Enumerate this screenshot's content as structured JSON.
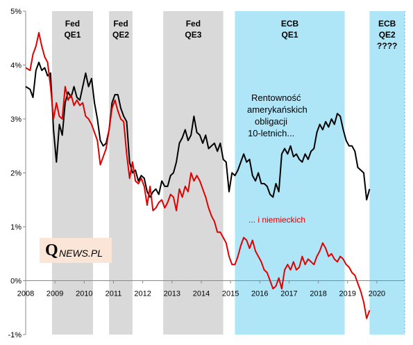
{
  "chart_data": {
    "type": "line",
    "xlim": [
      2008,
      2020.95
    ],
    "ylim": [
      -1,
      5
    ],
    "x_ticks": [
      "2008",
      "2009",
      "2010",
      "2011",
      "2012",
      "2013",
      "2014",
      "2015",
      "2016",
      "2017",
      "2018",
      "2019",
      "2020"
    ],
    "y_ticks": [
      "5%",
      "4%",
      "3%",
      "2%",
      "1%",
      "0%",
      "-1%"
    ],
    "grid": false,
    "bands": [
      {
        "label_line1": "Fed",
        "label_line2": "QE1",
        "label_line3": "",
        "start": 2008.9,
        "end": 2010.3,
        "color": "#d9d9d9"
      },
      {
        "label_line1": "Fed",
        "label_line2": "QE2",
        "label_line3": "",
        "start": 2010.85,
        "end": 2011.65,
        "color": "#d9d9d9"
      },
      {
        "label_line1": "Fed",
        "label_line2": "QE3",
        "label_line3": "",
        "start": 2012.7,
        "end": 2014.75,
        "color": "#d9d9d9"
      },
      {
        "label_line1": "ECB",
        "label_line2": "QE1",
        "label_line3": "",
        "start": 2015.15,
        "end": 2018.9,
        "color": "#aee5f7"
      },
      {
        "label_line1": "ECB",
        "label_line2": "QE2",
        "label_line3": "????",
        "start": 2019.75,
        "end": 2020.95,
        "color": "#aee5f7"
      }
    ],
    "series": [
      {
        "color": "#000000",
        "x": [
          2008.0,
          2008.15,
          2008.25,
          2008.35,
          2008.45,
          2008.55,
          2008.65,
          2008.75,
          2008.85,
          2008.95,
          2009.05,
          2009.15,
          2009.25,
          2009.35,
          2009.45,
          2009.55,
          2009.65,
          2009.75,
          2009.85,
          2009.95,
          2010.05,
          2010.15,
          2010.25,
          2010.35,
          2010.45,
          2010.55,
          2010.65,
          2010.75,
          2010.85,
          2010.95,
          2011.05,
          2011.15,
          2011.25,
          2011.35,
          2011.45,
          2011.55,
          2011.65,
          2011.75,
          2011.85,
          2011.95,
          2012.05,
          2012.15,
          2012.25,
          2012.35,
          2012.45,
          2012.55,
          2012.65,
          2012.75,
          2012.85,
          2012.95,
          2013.05,
          2013.15,
          2013.25,
          2013.35,
          2013.45,
          2013.55,
          2013.65,
          2013.75,
          2013.85,
          2013.95,
          2014.05,
          2014.15,
          2014.25,
          2014.35,
          2014.45,
          2014.55,
          2014.65,
          2014.75,
          2014.85,
          2014.95,
          2015.05,
          2015.15,
          2015.25,
          2015.35,
          2015.45,
          2015.55,
          2015.65,
          2015.75,
          2015.85,
          2015.95,
          2016.05,
          2016.15,
          2016.25,
          2016.35,
          2016.45,
          2016.55,
          2016.65,
          2016.75,
          2016.85,
          2016.95,
          2017.05,
          2017.15,
          2017.25,
          2017.35,
          2017.45,
          2017.55,
          2017.65,
          2017.75,
          2017.85,
          2017.95,
          2018.05,
          2018.15,
          2018.25,
          2018.35,
          2018.45,
          2018.55,
          2018.65,
          2018.75,
          2018.85,
          2018.95,
          2019.05,
          2019.15,
          2019.25,
          2019.35,
          2019.45,
          2019.55,
          2019.65,
          2019.75
        ],
        "values": [
          3.6,
          3.55,
          3.4,
          3.9,
          4.05,
          3.9,
          3.95,
          3.8,
          3.85,
          2.8,
          2.2,
          2.9,
          2.7,
          3.3,
          3.5,
          3.4,
          3.6,
          3.4,
          3.35,
          3.6,
          3.85,
          3.6,
          3.75,
          3.3,
          3.0,
          2.6,
          2.5,
          2.55,
          2.8,
          3.3,
          3.45,
          3.45,
          3.2,
          3.05,
          2.95,
          2.2,
          2.0,
          2.05,
          1.85,
          1.95,
          1.9,
          1.65,
          1.55,
          1.65,
          1.7,
          1.6,
          1.85,
          1.75,
          1.75,
          1.95,
          2.0,
          2.2,
          2.55,
          2.65,
          2.8,
          2.6,
          2.7,
          3.05,
          2.75,
          2.7,
          2.55,
          2.7,
          2.45,
          2.5,
          2.55,
          2.4,
          2.55,
          2.25,
          2.2,
          1.65,
          2.0,
          1.95,
          2.05,
          2.2,
          2.35,
          2.2,
          2.25,
          1.95,
          1.85,
          2.0,
          1.8,
          1.8,
          1.75,
          1.6,
          1.55,
          1.8,
          1.65,
          2.35,
          2.45,
          2.35,
          2.5,
          2.3,
          2.35,
          2.25,
          2.2,
          2.35,
          2.25,
          2.4,
          2.45,
          2.75,
          2.9,
          2.8,
          2.95,
          2.85,
          3.0,
          2.9,
          3.1,
          3.05,
          2.8,
          2.6,
          2.5,
          2.5,
          2.4,
          2.1,
          2.05,
          2.0,
          1.5,
          1.7
        ]
      },
      {
        "color": "#e00000",
        "x": [
          2008.0,
          2008.15,
          2008.25,
          2008.35,
          2008.45,
          2008.55,
          2008.65,
          2008.75,
          2008.85,
          2008.95,
          2009.05,
          2009.15,
          2009.25,
          2009.35,
          2009.45,
          2009.55,
          2009.65,
          2009.75,
          2009.85,
          2009.95,
          2010.05,
          2010.15,
          2010.25,
          2010.35,
          2010.45,
          2010.55,
          2010.65,
          2010.75,
          2010.85,
          2010.95,
          2011.05,
          2011.15,
          2011.25,
          2011.35,
          2011.45,
          2011.55,
          2011.65,
          2011.75,
          2011.85,
          2011.95,
          2012.05,
          2012.15,
          2012.25,
          2012.35,
          2012.45,
          2012.55,
          2012.65,
          2012.75,
          2012.85,
          2012.95,
          2013.05,
          2013.15,
          2013.25,
          2013.35,
          2013.45,
          2013.55,
          2013.65,
          2013.75,
          2013.85,
          2013.95,
          2014.05,
          2014.15,
          2014.25,
          2014.35,
          2014.45,
          2014.55,
          2014.65,
          2014.75,
          2014.85,
          2014.95,
          2015.05,
          2015.15,
          2015.25,
          2015.35,
          2015.45,
          2015.55,
          2015.65,
          2015.75,
          2015.85,
          2015.95,
          2016.05,
          2016.15,
          2016.25,
          2016.35,
          2016.45,
          2016.55,
          2016.65,
          2016.75,
          2016.85,
          2016.95,
          2017.05,
          2017.15,
          2017.25,
          2017.35,
          2017.45,
          2017.55,
          2017.65,
          2017.75,
          2017.85,
          2017.95,
          2018.05,
          2018.15,
          2018.25,
          2018.35,
          2018.45,
          2018.55,
          2018.65,
          2018.75,
          2018.85,
          2018.95,
          2019.05,
          2019.15,
          2019.25,
          2019.35,
          2019.45,
          2019.55,
          2019.65,
          2019.75
        ],
        "values": [
          3.95,
          3.9,
          4.2,
          4.35,
          4.6,
          4.35,
          4.15,
          4.05,
          3.6,
          3.0,
          3.3,
          3.05,
          3.0,
          3.6,
          3.35,
          3.45,
          3.25,
          3.35,
          3.25,
          3.3,
          3.05,
          3.0,
          2.9,
          2.75,
          2.6,
          2.15,
          2.3,
          2.45,
          2.8,
          3.2,
          3.35,
          3.15,
          3.0,
          2.95,
          2.35,
          1.9,
          2.2,
          1.85,
          1.8,
          1.9,
          1.75,
          1.4,
          1.75,
          1.3,
          1.35,
          1.45,
          1.5,
          1.35,
          1.45,
          1.6,
          1.55,
          1.3,
          1.7,
          1.55,
          1.75,
          1.65,
          2.0,
          1.85,
          1.95,
          1.85,
          1.7,
          1.55,
          1.35,
          1.2,
          1.1,
          0.9,
          0.9,
          0.8,
          0.7,
          0.45,
          0.3,
          0.3,
          0.45,
          0.65,
          0.8,
          0.75,
          0.6,
          0.75,
          0.55,
          0.45,
          0.35,
          0.2,
          0.15,
          0.0,
          -0.15,
          -0.1,
          0.05,
          -0.15,
          0.2,
          0.3,
          0.2,
          0.35,
          0.2,
          0.25,
          0.45,
          0.3,
          0.4,
          0.35,
          0.3,
          0.45,
          0.55,
          0.7,
          0.6,
          0.45,
          0.5,
          0.4,
          0.35,
          0.45,
          0.4,
          0.3,
          0.25,
          0.15,
          0.1,
          -0.05,
          -0.2,
          -0.4,
          -0.7,
          -0.55
        ]
      }
    ],
    "annotations": {
      "black_line1": "Rentowność",
      "black_line2": "amerykańskich",
      "black_line3": "obligacji",
      "black_line4": "10-letnich...",
      "red_text": "... i niemieckich"
    }
  },
  "logo": {
    "q": "Q",
    "rest": "NEWS.PL"
  }
}
